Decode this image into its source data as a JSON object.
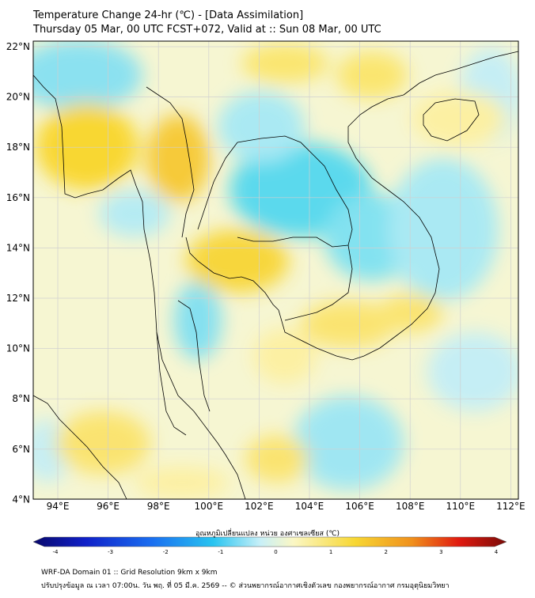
{
  "header": {
    "line1": "Temperature Change 24-hr (℃) - [Data Assimilation]",
    "line2": "Thursday 05 Mar, 00 UTC FCST+072, Valid at :: Sun 08 Mar, 00 UTC"
  },
  "map": {
    "lat_ticks": [
      "22°N",
      "20°N",
      "18°N",
      "16°N",
      "14°N",
      "12°N",
      "10°N",
      "8°N",
      "6°N",
      "4°N"
    ],
    "lon_ticks": [
      "94°E",
      "96°E",
      "98°E",
      "100°E",
      "102°E",
      "104°E",
      "106°E",
      "108°E",
      "110°E",
      "112°E"
    ],
    "colors": {
      "ocean_base": "#dff4f9",
      "cool": "#43d6ee",
      "warm": "#f9d629",
      "land_line": "#000000",
      "grid": "#cccccc"
    }
  },
  "colorbar": {
    "label": "อุณหภูมิเปลี่ยนแปลง หน่วย องศาเซลเซียส (℃)",
    "ticks": [
      "-4",
      "-3",
      "-2",
      "-1",
      "0",
      "1",
      "2",
      "3",
      "4"
    ],
    "stops": [
      "#08086b",
      "#1020c8",
      "#1a6ef0",
      "#28c4f0",
      "#c8f0f8",
      "#fbf7c4",
      "#f7d733",
      "#f0901c",
      "#e01a10",
      "#7a0c08"
    ]
  },
  "footer": {
    "line1": "WRF-DA Domain 01 :: Grid Resolution 9km x 9km",
    "line2": "ปรับปรุงข้อมูล ณ เวลา 07:00น. วัน พฤ. ที่ 05 มี.ค. 2569 -- © ส่วนพยากรณ์อากาศเชิงตัวเลข กองพยากรณ์อากาศ กรมอุตุนิยมวิทยา"
  }
}
